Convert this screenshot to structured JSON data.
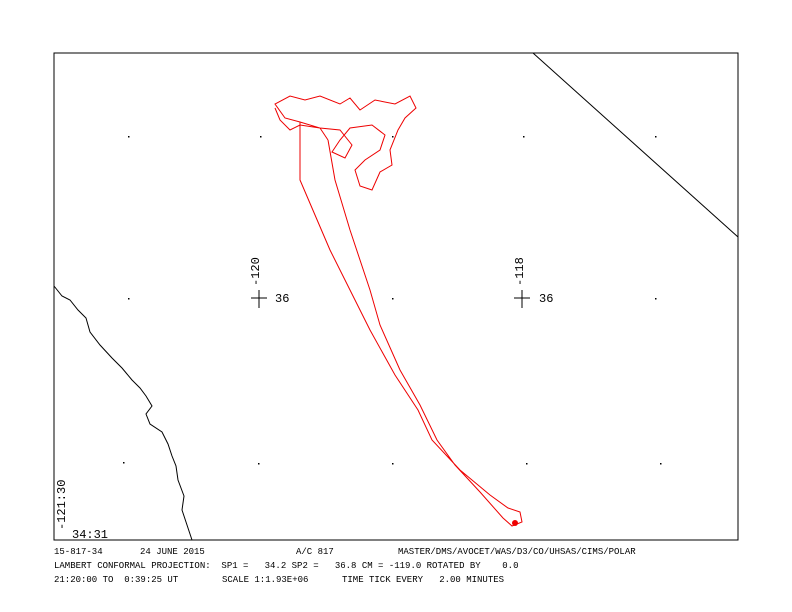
{
  "labels": {
    "lon_left": "-120",
    "lat_left": "36",
    "lon_right": "-118",
    "lat_right": "36",
    "corner_lon": "-121:30",
    "corner_lat": "34:31"
  },
  "footer": {
    "line1": {
      "flight": "15-817-34",
      "date": "24 JUNE 2015",
      "aircraft": "A/C 817",
      "instruments": "MASTER/DMS/AVOCET/WAS/D3/CO/UHSAS/CIMS/POLAR"
    },
    "line2": "LAMBERT CONFORMAL PROJECTION:  SP1 =   34.2 SP2 =   36.8 CM = -119.0 ROTATED BY    0.0",
    "line3": {
      "time": "21:20:00 TO  0:39:25 UT",
      "scale": "SCALE 1:1.93E+06",
      "tick": "TIME TICK EVERY   2.00 MINUTES"
    }
  }
}
